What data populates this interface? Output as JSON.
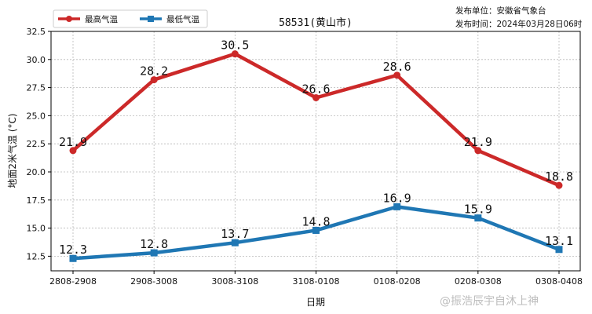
{
  "chart_data": {
    "type": "line",
    "title": "58531(黄山市)",
    "xlabel": "日期",
    "ylabel": "地面2米气温 (°C)",
    "categories": [
      "2808-2908",
      "2908-3008",
      "3008-3108",
      "3108-0108",
      "0108-0208",
      "0208-0308",
      "0308-0408"
    ],
    "ylim": [
      11.2,
      32.5
    ],
    "yticks": [
      "12.5",
      "15.0",
      "17.5",
      "20.0",
      "22.5",
      "25.0",
      "27.5",
      "30.0",
      "32.5"
    ],
    "grid": true,
    "legend_position": "top-left",
    "series": [
      {
        "name": "最高气温",
        "color": "#cc2929",
        "marker": "circle",
        "values": [
          21.9,
          28.2,
          30.5,
          26.6,
          28.6,
          21.9,
          18.8
        ],
        "labels": [
          "21.9",
          "28.2",
          "30.5",
          "26.6",
          "28.6",
          "21.9",
          "18.8"
        ]
      },
      {
        "name": "最低气温",
        "color": "#1f77b4",
        "marker": "square",
        "values": [
          12.3,
          12.8,
          13.7,
          14.8,
          16.9,
          15.9,
          13.1
        ],
        "labels": [
          "12.3",
          "12.8",
          "13.7",
          "14.8",
          "16.9",
          "15.9",
          "13.1"
        ]
      }
    ]
  },
  "meta": {
    "publisher": "发布单位：安徽省气象台",
    "publish_time": "发布时间：2024年03月28日06时"
  },
  "watermark": "@振浩辰宇自沐上神"
}
